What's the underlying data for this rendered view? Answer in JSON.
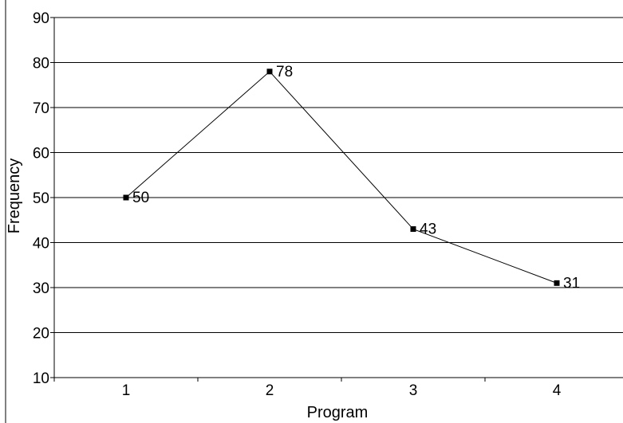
{
  "chart_data": {
    "type": "line",
    "title": "",
    "xlabel": "Program",
    "ylabel": "Frequency",
    "categories": [
      "1",
      "2",
      "3",
      "4"
    ],
    "series": [
      {
        "values": [
          50,
          78,
          43,
          31
        ],
        "color": "#000000",
        "marker": "square"
      }
    ],
    "data_labels": [
      "50",
      "78",
      "43",
      "31"
    ],
    "ylim": [
      10,
      90
    ],
    "yticks": [
      "10",
      "20",
      "30",
      "40",
      "50",
      "60",
      "70",
      "80",
      "90"
    ],
    "grid": "horizontal",
    "legend": "none"
  }
}
